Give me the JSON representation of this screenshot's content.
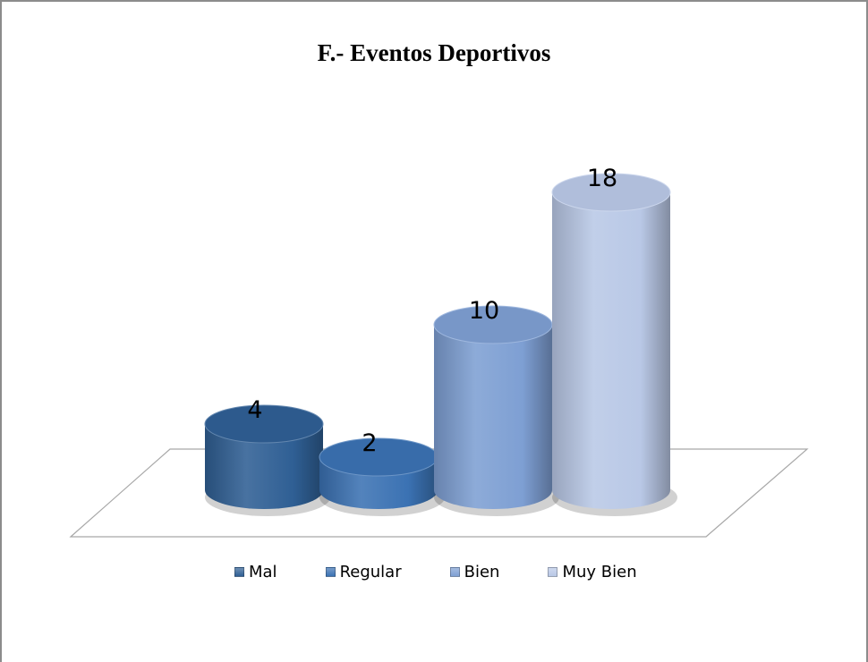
{
  "chart_data": {
    "type": "bar",
    "title": "F.- Eventos Deportivos",
    "categories": [
      "Mal",
      "Regular",
      "Bien",
      "Muy Bien"
    ],
    "series": [
      {
        "values": [
          4,
          2,
          10,
          18
        ]
      }
    ],
    "data_labels": [
      "4",
      "2",
      "10",
      "18"
    ],
    "colors": [
      "#2f5f94",
      "#3b72b3",
      "#7e9fd3",
      "#b9c8e6"
    ],
    "legend_position": "bottom",
    "grid": false,
    "ylim": [
      0,
      18
    ]
  }
}
